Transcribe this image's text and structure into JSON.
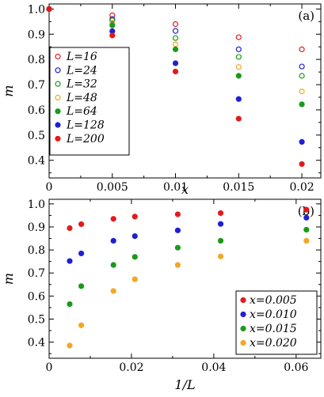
{
  "chart_data": [
    {
      "type": "scatter",
      "panel_label": "(a)",
      "xlabel": "x",
      "ylabel": "m",
      "xlim": [
        0,
        0.0215
      ],
      "ylim": [
        0.33,
        1.02
      ],
      "xticks": [
        0,
        0.005,
        0.01,
        0.015,
        0.02
      ],
      "xtick_labels": [
        "0",
        "0.005",
        "0.01",
        "0.015",
        "0.02"
      ],
      "yticks": [
        0.4,
        0.5,
        0.6,
        0.7,
        0.8,
        0.9,
        1.0
      ],
      "ytick_labels": [
        "0.4",
        "0.5",
        "0.6",
        "0.7",
        "0.8",
        "0.9",
        "1.0"
      ],
      "grid": false,
      "legend_position": "left",
      "series": [
        {
          "name": "L=16",
          "color": "#e41a1c",
          "marker": "open",
          "x": [
            0,
            0.005,
            0.01,
            0.015,
            0.02
          ],
          "y": [
            1.0,
            0.975,
            0.94,
            0.888,
            0.84
          ]
        },
        {
          "name": "L=24",
          "color": "#1f1fd6",
          "marker": "open",
          "x": [
            0,
            0.005,
            0.01,
            0.015,
            0.02
          ],
          "y": [
            1.0,
            0.96,
            0.913,
            0.84,
            0.772
          ]
        },
        {
          "name": "L=32",
          "color": "#1a9a1a",
          "marker": "open",
          "x": [
            0,
            0.005,
            0.01,
            0.015,
            0.02
          ],
          "y": [
            1.0,
            0.955,
            0.885,
            0.81,
            0.735
          ]
        },
        {
          "name": "L=48",
          "color": "#f5a623",
          "marker": "open",
          "x": [
            0,
            0.005,
            0.01,
            0.015,
            0.02
          ],
          "y": [
            1.0,
            0.945,
            0.86,
            0.77,
            0.673
          ]
        },
        {
          "name": "L=64",
          "color": "#1a9a1a",
          "marker": "filled",
          "x": [
            0,
            0.005,
            0.01,
            0.015,
            0.02
          ],
          "y": [
            1.0,
            0.935,
            0.84,
            0.735,
            0.622
          ]
        },
        {
          "name": "L=128",
          "color": "#1f1fd6",
          "marker": "filled",
          "x": [
            0,
            0.005,
            0.01,
            0.015,
            0.02
          ],
          "y": [
            1.0,
            0.912,
            0.785,
            0.643,
            0.473
          ]
        },
        {
          "name": "L=200",
          "color": "#e41a1c",
          "marker": "filled",
          "x": [
            0,
            0.005,
            0.01,
            0.015,
            0.02
          ],
          "y": [
            1.0,
            0.895,
            0.752,
            0.565,
            0.385
          ]
        }
      ]
    },
    {
      "type": "scatter",
      "panel_label": "(b)",
      "xlabel": "1/L",
      "ylabel": "m",
      "xlim": [
        0,
        0.066
      ],
      "ylim": [
        0.33,
        1.02
      ],
      "xticks": [
        0,
        0.02,
        0.04,
        0.06
      ],
      "xtick_labels": [
        "0",
        "0.02",
        "0.04",
        "0.06"
      ],
      "yticks": [
        0.4,
        0.5,
        0.6,
        0.7,
        0.8,
        0.9,
        1.0
      ],
      "ytick_labels": [
        "0.4",
        "0.5",
        "0.6",
        "0.7",
        "0.8",
        "0.9",
        "1.0"
      ],
      "grid": false,
      "legend_position": "bottom-right",
      "series": [
        {
          "name": "x=0.005",
          "color": "#e41a1c",
          "marker": "filled",
          "x": [
            0.005,
            0.0078125,
            0.015625,
            0.0208333,
            0.03125,
            0.0416667,
            0.0625
          ],
          "y": [
            0.895,
            0.912,
            0.935,
            0.945,
            0.955,
            0.96,
            0.975
          ]
        },
        {
          "name": "x=0.010",
          "color": "#1f1fd6",
          "marker": "filled",
          "x": [
            0.005,
            0.0078125,
            0.015625,
            0.0208333,
            0.03125,
            0.0416667,
            0.0625
          ],
          "y": [
            0.752,
            0.785,
            0.84,
            0.86,
            0.885,
            0.913,
            0.94
          ]
        },
        {
          "name": "x=0.015",
          "color": "#1a9a1a",
          "marker": "filled",
          "x": [
            0.005,
            0.0078125,
            0.015625,
            0.0208333,
            0.03125,
            0.0416667,
            0.0625
          ],
          "y": [
            0.565,
            0.643,
            0.735,
            0.77,
            0.81,
            0.84,
            0.888
          ]
        },
        {
          "name": "x=0.020",
          "color": "#f5a623",
          "marker": "filled",
          "x": [
            0.005,
            0.0078125,
            0.015625,
            0.0208333,
            0.03125,
            0.0416667,
            0.0625
          ],
          "y": [
            0.385,
            0.473,
            0.622,
            0.673,
            0.735,
            0.772,
            0.84
          ]
        }
      ]
    }
  ]
}
